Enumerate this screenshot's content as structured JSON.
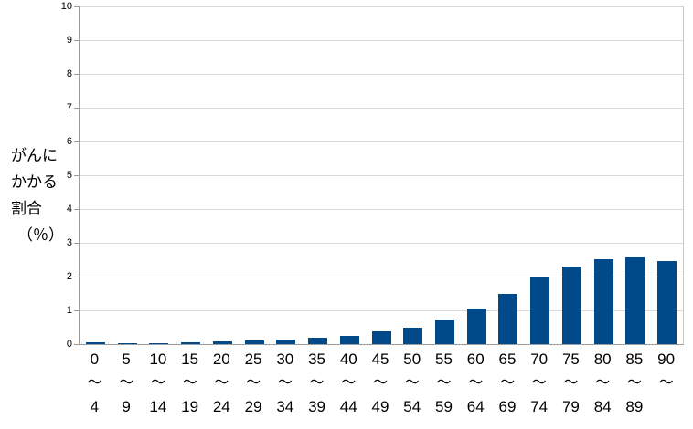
{
  "chart_data": {
    "type": "bar",
    "title": "",
    "xlabel": "",
    "ylabel": "がんにかかる割合（％）",
    "ylabel_lines": [
      "がんに",
      "かかる",
      "割合",
      "（％）"
    ],
    "ylim": [
      0,
      10
    ],
    "yticks": [
      0,
      1,
      2,
      3,
      4,
      5,
      6,
      7,
      8,
      9,
      10
    ],
    "grid": true,
    "legend": "none",
    "tilde": "～",
    "categories": [
      "0～4",
      "5～9",
      "10～14",
      "15～19",
      "20～24",
      "25～29",
      "30～34",
      "35～39",
      "40～44",
      "45～49",
      "50～54",
      "55～59",
      "60～64",
      "65～69",
      "70～74",
      "75～79",
      "80～84",
      "85～89",
      "90～"
    ],
    "category_labels": [
      {
        "start": "0",
        "end": "4"
      },
      {
        "start": "5",
        "end": "9"
      },
      {
        "start": "10",
        "end": "14"
      },
      {
        "start": "15",
        "end": "19"
      },
      {
        "start": "20",
        "end": "24"
      },
      {
        "start": "25",
        "end": "29"
      },
      {
        "start": "30",
        "end": "34"
      },
      {
        "start": "35",
        "end": "39"
      },
      {
        "start": "40",
        "end": "44"
      },
      {
        "start": "45",
        "end": "49"
      },
      {
        "start": "50",
        "end": "54"
      },
      {
        "start": "55",
        "end": "59"
      },
      {
        "start": "60",
        "end": "64"
      },
      {
        "start": "65",
        "end": "69"
      },
      {
        "start": "70",
        "end": "74"
      },
      {
        "start": "75",
        "end": "79"
      },
      {
        "start": "80",
        "end": "84"
      },
      {
        "start": "85",
        "end": "89"
      },
      {
        "start": "90",
        "end": ""
      }
    ],
    "values": [
      0.05,
      0.03,
      0.04,
      0.06,
      0.08,
      0.1,
      0.14,
      0.18,
      0.25,
      0.37,
      0.5,
      0.7,
      1.05,
      1.5,
      1.97,
      2.31,
      2.52,
      2.58,
      2.45
    ],
    "colors": {
      "bar": "#004a8a",
      "gridline": "#d9d9d9",
      "axis": "#9d9d9d",
      "text": "#000000"
    }
  }
}
